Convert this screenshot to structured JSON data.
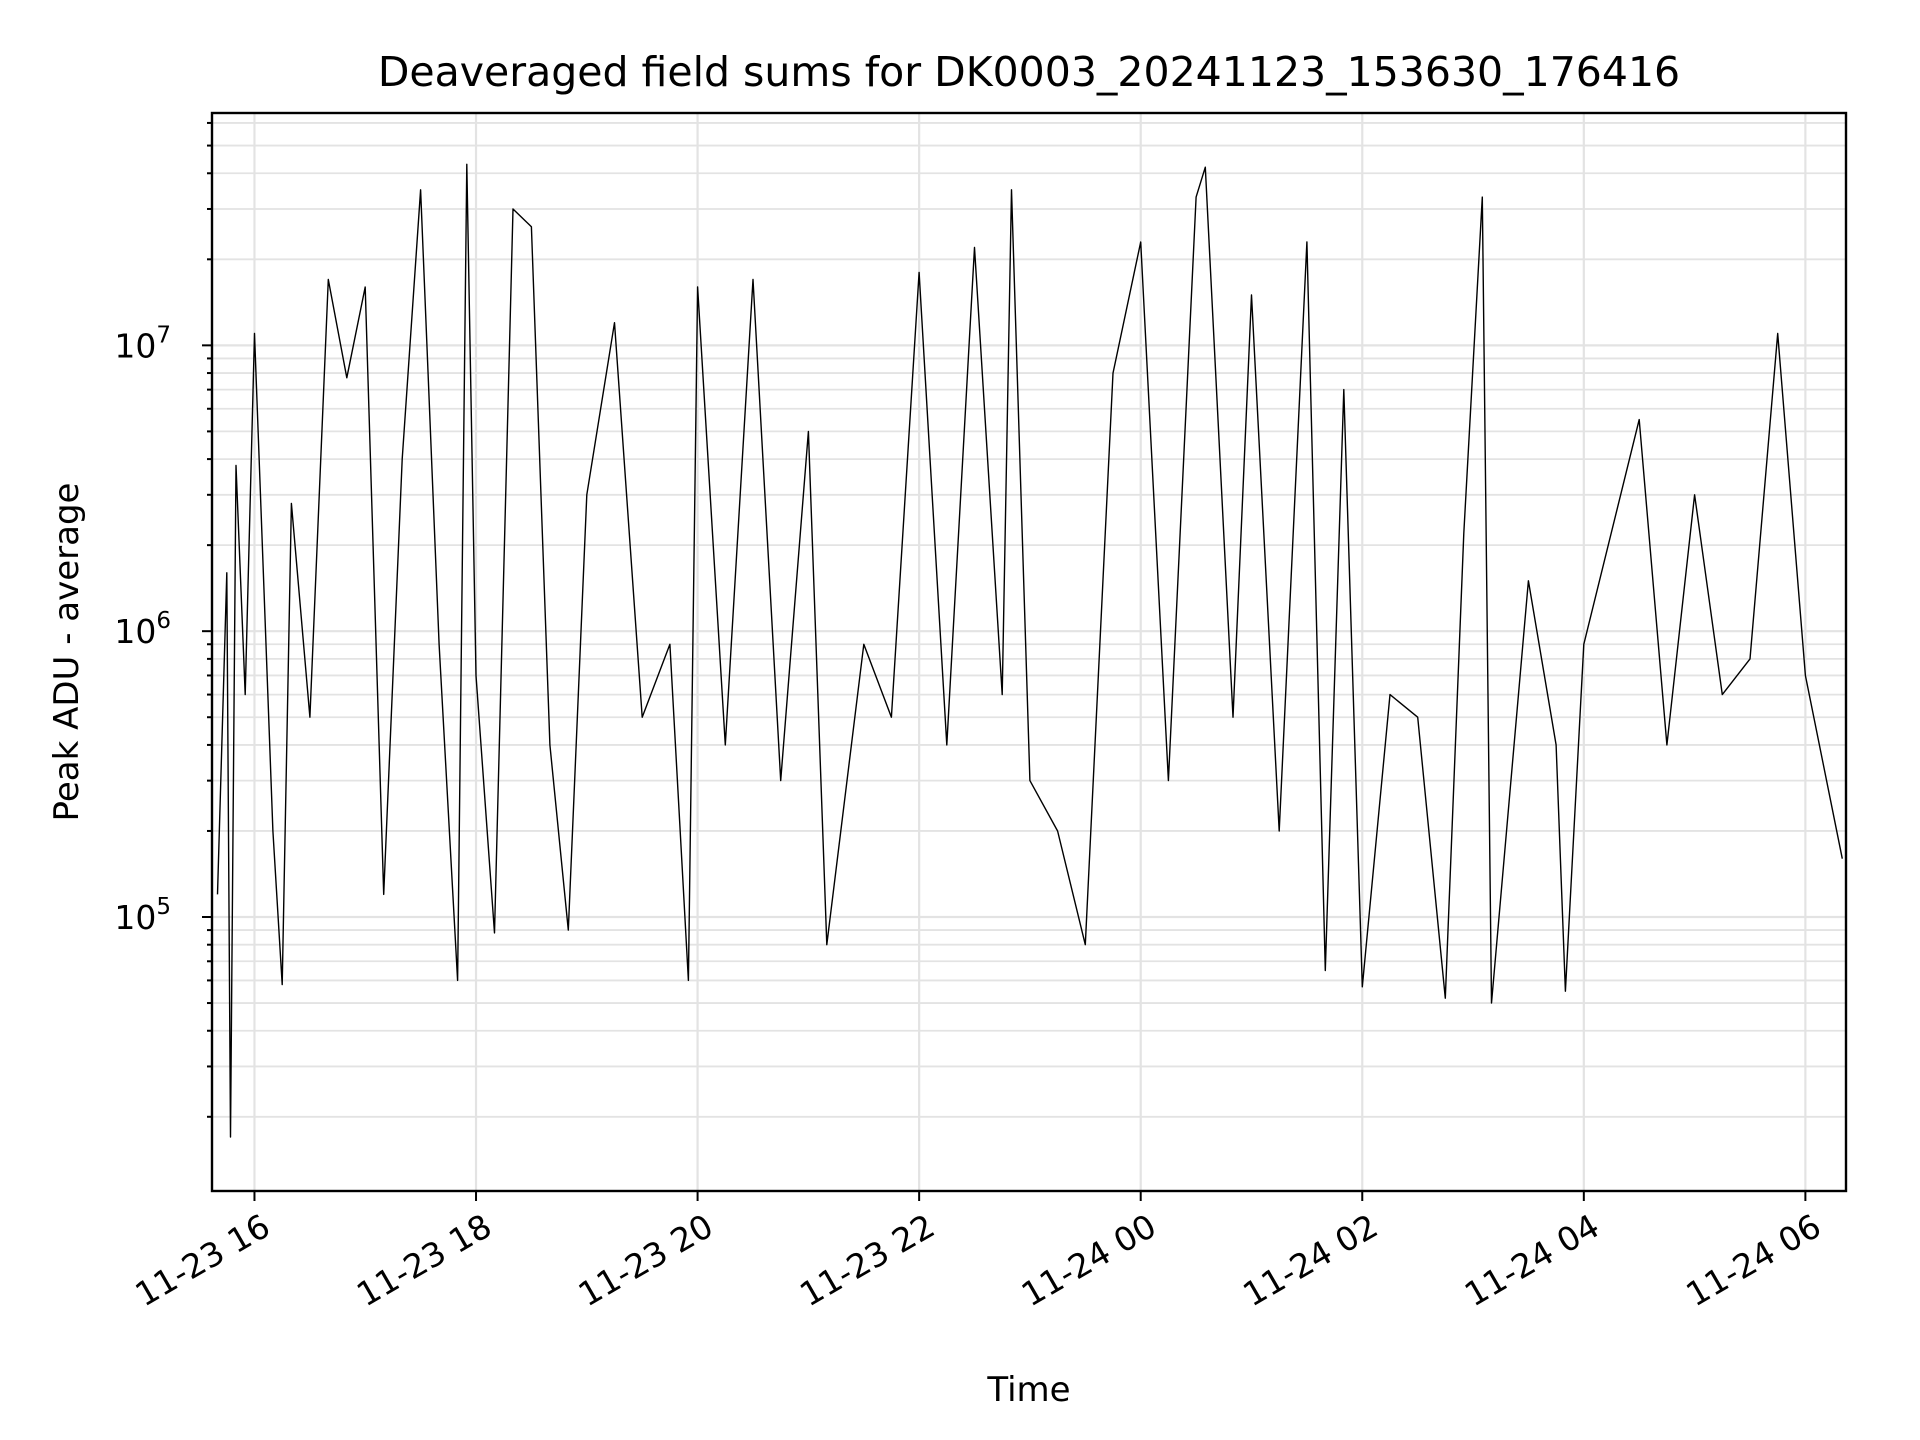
{
  "chart_data": {
    "type": "line",
    "title": "Deaveraged field sums for DK0003_20241123_153630_176416",
    "xlabel": "Time",
    "ylabel": "Peak ADU - average",
    "yscale": "log",
    "xlim": [
      "2024-11-23 15:37",
      "2024-11-24 06:22"
    ],
    "ylim": [
      11000,
      65000000
    ],
    "grid": true,
    "line_color": "#000000",
    "x_ticks": [
      {
        "value": "2024-11-23 16:00",
        "label": "11-23 16"
      },
      {
        "value": "2024-11-23 18:00",
        "label": "11-23 18"
      },
      {
        "value": "2024-11-23 20:00",
        "label": "11-23 20"
      },
      {
        "value": "2024-11-23 22:00",
        "label": "11-23 22"
      },
      {
        "value": "2024-11-24 00:00",
        "label": "11-24 00"
      },
      {
        "value": "2024-11-24 02:00",
        "label": "11-24 02"
      },
      {
        "value": "2024-11-24 04:00",
        "label": "11-24 04"
      },
      {
        "value": "2024-11-24 06:00",
        "label": "11-24 06"
      }
    ],
    "y_ticks": [
      {
        "value": 100000,
        "base": "10",
        "exp": "5"
      },
      {
        "value": 1000000,
        "base": "10",
        "exp": "6"
      },
      {
        "value": 10000000,
        "base": "10",
        "exp": "7"
      }
    ],
    "series": [
      {
        "points": [
          [
            "2024-11-23 15:40",
            120000
          ],
          [
            "2024-11-23 15:45",
            1600000
          ],
          [
            "2024-11-23 15:47",
            17000
          ],
          [
            "2024-11-23 15:50",
            3800000
          ],
          [
            "2024-11-23 15:55",
            600000
          ],
          [
            "2024-11-23 16:00",
            11000000
          ],
          [
            "2024-11-23 16:10",
            200000
          ],
          [
            "2024-11-23 16:15",
            58000
          ],
          [
            "2024-11-23 16:20",
            2800000
          ],
          [
            "2024-11-23 16:30",
            500000
          ],
          [
            "2024-11-23 16:40",
            17000000
          ],
          [
            "2024-11-23 16:50",
            7700000
          ],
          [
            "2024-11-23 17:00",
            16000000
          ],
          [
            "2024-11-23 17:10",
            120000
          ],
          [
            "2024-11-23 17:20",
            4000000
          ],
          [
            "2024-11-23 17:30",
            35000000
          ],
          [
            "2024-11-23 17:40",
            900000
          ],
          [
            "2024-11-23 17:50",
            60000
          ],
          [
            "2024-11-23 17:55",
            43000000
          ],
          [
            "2024-11-23 18:00",
            700000
          ],
          [
            "2024-11-23 18:10",
            88000
          ],
          [
            "2024-11-23 18:20",
            30000000
          ],
          [
            "2024-11-23 18:30",
            26000000
          ],
          [
            "2024-11-23 18:40",
            400000
          ],
          [
            "2024-11-23 18:50",
            90000
          ],
          [
            "2024-11-23 19:00",
            3000000
          ],
          [
            "2024-11-23 19:15",
            12000000
          ],
          [
            "2024-11-23 19:30",
            500000
          ],
          [
            "2024-11-23 19:45",
            900000
          ],
          [
            "2024-11-23 19:55",
            60000
          ],
          [
            "2024-11-23 20:00",
            16000000
          ],
          [
            "2024-11-23 20:15",
            400000
          ],
          [
            "2024-11-23 20:30",
            17000000
          ],
          [
            "2024-11-23 20:45",
            300000
          ],
          [
            "2024-11-23 21:00",
            5000000
          ],
          [
            "2024-11-23 21:10",
            80000
          ],
          [
            "2024-11-23 21:30",
            900000
          ],
          [
            "2024-11-23 21:45",
            500000
          ],
          [
            "2024-11-23 22:00",
            18000000
          ],
          [
            "2024-11-23 22:15",
            400000
          ],
          [
            "2024-11-23 22:30",
            22000000
          ],
          [
            "2024-11-23 22:45",
            600000
          ],
          [
            "2024-11-23 22:50",
            35000000
          ],
          [
            "2024-11-23 23:00",
            300000
          ],
          [
            "2024-11-23 23:15",
            200000
          ],
          [
            "2024-11-23 23:30",
            80000
          ],
          [
            "2024-11-23 23:45",
            8000000
          ],
          [
            "2024-11-24 00:00",
            23000000
          ],
          [
            "2024-11-24 00:15",
            300000
          ],
          [
            "2024-11-24 00:30",
            33000000
          ],
          [
            "2024-11-24 00:35",
            42000000
          ],
          [
            "2024-11-24 00:50",
            500000
          ],
          [
            "2024-11-24 01:00",
            15000000
          ],
          [
            "2024-11-24 01:15",
            200000
          ],
          [
            "2024-11-24 01:30",
            23000000
          ],
          [
            "2024-11-24 01:40",
            65000
          ],
          [
            "2024-11-24 01:50",
            7000000
          ],
          [
            "2024-11-24 02:00",
            57000
          ],
          [
            "2024-11-24 02:15",
            600000
          ],
          [
            "2024-11-24 02:30",
            500000
          ],
          [
            "2024-11-24 02:45",
            52000
          ],
          [
            "2024-11-24 02:55",
            2200000
          ],
          [
            "2024-11-24 03:05",
            33000000
          ],
          [
            "2024-11-24 03:10",
            50000
          ],
          [
            "2024-11-24 03:30",
            1500000
          ],
          [
            "2024-11-24 03:45",
            400000
          ],
          [
            "2024-11-24 03:50",
            55000
          ],
          [
            "2024-11-24 04:00",
            900000
          ],
          [
            "2024-11-24 04:30",
            5500000
          ],
          [
            "2024-11-24 04:45",
            400000
          ],
          [
            "2024-11-24 05:00",
            3000000
          ],
          [
            "2024-11-24 05:15",
            600000
          ],
          [
            "2024-11-24 05:30",
            800000
          ],
          [
            "2024-11-24 05:45",
            11000000
          ],
          [
            "2024-11-24 06:00",
            700000
          ],
          [
            "2024-11-24 06:20",
            160000
          ]
        ]
      }
    ]
  }
}
